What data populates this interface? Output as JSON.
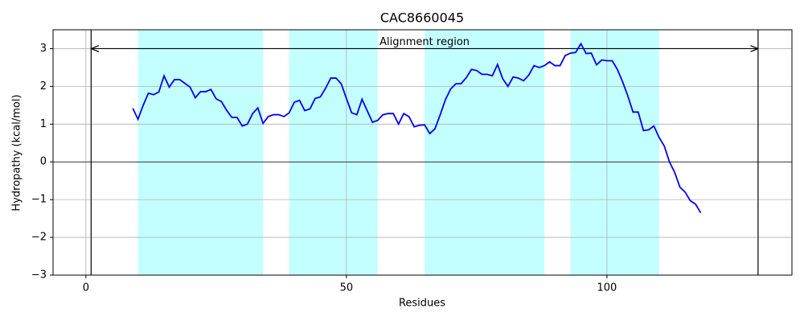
{
  "chart_data": {
    "type": "line",
    "title": "CAC8660045",
    "xlabel": "Residues",
    "ylabel": "Hydropathy (kcal/mol)",
    "x": [
      9,
      10,
      11,
      12,
      13,
      14,
      15,
      16,
      17,
      18,
      19,
      20,
      21,
      22,
      23,
      24,
      25,
      26,
      27,
      28,
      29,
      30,
      31,
      32,
      33,
      34,
      35,
      36,
      37,
      38,
      39,
      40,
      41,
      42,
      43,
      44,
      45,
      46,
      47,
      48,
      49,
      50,
      51,
      52,
      53,
      54,
      55,
      56,
      57,
      58,
      59,
      60,
      61,
      62,
      63,
      64,
      65,
      66,
      67,
      68,
      69,
      70,
      71,
      72,
      73,
      74,
      75,
      76,
      77,
      78,
      79,
      80,
      81,
      82,
      83,
      84,
      85,
      86,
      87,
      88,
      89,
      90,
      91,
      92,
      93,
      94,
      95,
      96,
      97,
      98,
      99,
      100,
      101,
      102,
      103,
      104,
      105,
      106,
      107,
      108,
      109,
      110,
      111,
      112,
      113,
      114,
      115,
      116,
      117,
      118
    ],
    "values": [
      1.42,
      1.13,
      1.5,
      1.82,
      1.78,
      1.85,
      2.28,
      1.98,
      2.18,
      2.18,
      2.08,
      1.98,
      1.7,
      1.86,
      1.86,
      1.92,
      1.67,
      1.6,
      1.37,
      1.18,
      1.18,
      0.95,
      1.0,
      1.28,
      1.43,
      1.02,
      1.2,
      1.25,
      1.25,
      1.2,
      1.3,
      1.58,
      1.63,
      1.36,
      1.4,
      1.68,
      1.72,
      1.95,
      2.22,
      2.22,
      2.07,
      1.68,
      1.3,
      1.25,
      1.66,
      1.35,
      1.05,
      1.1,
      1.25,
      1.28,
      1.28,
      1.0,
      1.28,
      1.2,
      0.93,
      0.97,
      0.98,
      0.75,
      0.88,
      1.25,
      1.65,
      1.93,
      2.07,
      2.07,
      2.23,
      2.45,
      2.42,
      2.32,
      2.32,
      2.28,
      2.58,
      2.2,
      2.0,
      2.25,
      2.22,
      2.15,
      2.3,
      2.55,
      2.5,
      2.55,
      2.65,
      2.55,
      2.55,
      2.82,
      2.88,
      2.9,
      3.13,
      2.87,
      2.88,
      2.57,
      2.7,
      2.68,
      2.68,
      2.45,
      2.12,
      1.75,
      1.32,
      1.32,
      0.83,
      0.85,
      0.95,
      0.65,
      0.42,
      0.0,
      -0.28,
      -0.67,
      -0.8,
      -1.03,
      -1.12,
      -1.35
    ],
    "color": "#0000ff",
    "regions": [
      [
        10,
        34
      ],
      [
        39,
        56
      ],
      [
        65,
        88
      ],
      [
        93,
        110
      ]
    ],
    "region_color": "#c4ffff",
    "alignment": {
      "label": "Alignment region",
      "range": [
        1,
        129
      ],
      "y": 3
    },
    "hline": 0,
    "xlim": [
      -6.3,
      135.5
    ],
    "ylim": [
      -3,
      3.5
    ],
    "xticks": [
      0,
      50,
      100
    ],
    "yticks": [
      {
        "value": -3,
        "label": "−3"
      },
      {
        "value": -2,
        "label": "−2"
      },
      {
        "value": -1,
        "label": "−1"
      },
      0,
      1,
      2,
      3
    ],
    "grid": true
  }
}
